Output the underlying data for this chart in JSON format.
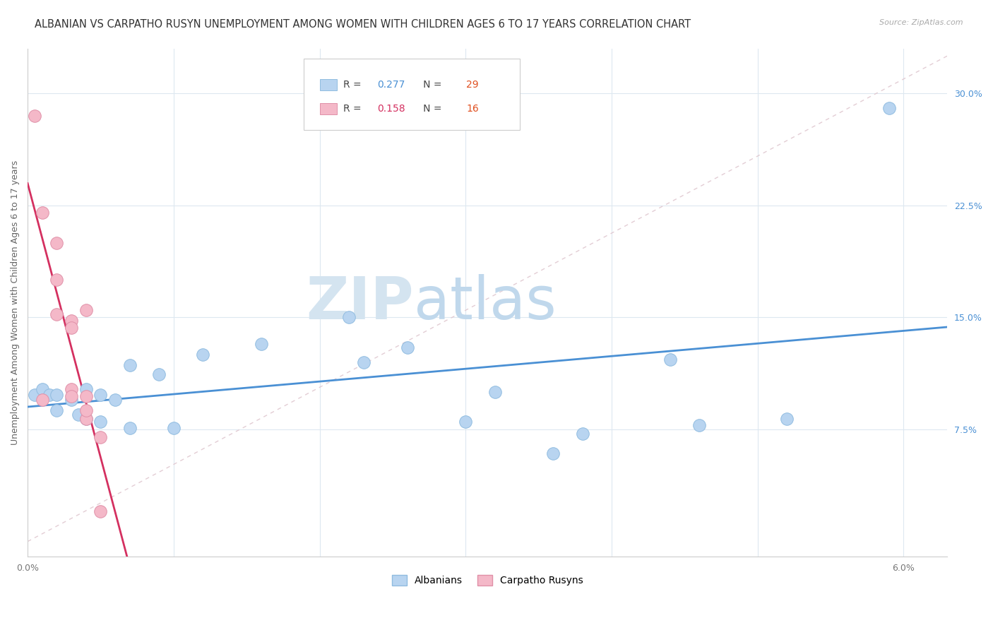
{
  "title": "ALBANIAN VS CARPATHO RUSYN UNEMPLOYMENT AMONG WOMEN WITH CHILDREN AGES 6 TO 17 YEARS CORRELATION CHART",
  "source": "Source: ZipAtlas.com",
  "ylabel": "Unemployment Among Women with Children Ages 6 to 17 years",
  "xlim": [
    0.0,
    0.063
  ],
  "ylim": [
    -0.01,
    0.33
  ],
  "xtick_vals": [
    0.0,
    0.01,
    0.02,
    0.03,
    0.04,
    0.05,
    0.06
  ],
  "xtick_labels": [
    "0.0%",
    "",
    "",
    "",
    "",
    "",
    "6.0%"
  ],
  "yticks_right": [
    0.075,
    0.15,
    0.225,
    0.3
  ],
  "yticklabels_right": [
    "7.5%",
    "15.0%",
    "22.5%",
    "30.0%"
  ],
  "albanian_x": [
    0.0005,
    0.001,
    0.0015,
    0.002,
    0.002,
    0.003,
    0.0035,
    0.004,
    0.004,
    0.005,
    0.005,
    0.006,
    0.007,
    0.007,
    0.009,
    0.01,
    0.012,
    0.016,
    0.022,
    0.023,
    0.026,
    0.03,
    0.032,
    0.036,
    0.038,
    0.044,
    0.046,
    0.052,
    0.059
  ],
  "albanian_y": [
    0.098,
    0.102,
    0.098,
    0.098,
    0.088,
    0.095,
    0.085,
    0.082,
    0.102,
    0.08,
    0.098,
    0.095,
    0.076,
    0.118,
    0.112,
    0.076,
    0.125,
    0.132,
    0.15,
    0.12,
    0.13,
    0.08,
    0.1,
    0.059,
    0.072,
    0.122,
    0.078,
    0.082,
    0.29
  ],
  "rusyn_x": [
    0.0005,
    0.001,
    0.001,
    0.002,
    0.002,
    0.002,
    0.003,
    0.003,
    0.003,
    0.003,
    0.004,
    0.004,
    0.004,
    0.004,
    0.005,
    0.005
  ],
  "rusyn_y": [
    0.285,
    0.22,
    0.095,
    0.2,
    0.175,
    0.152,
    0.148,
    0.143,
    0.102,
    0.097,
    0.082,
    0.088,
    0.097,
    0.155,
    0.07,
    0.02
  ],
  "albanian_R": 0.277,
  "albanian_N": 29,
  "rusyn_R": 0.158,
  "rusyn_N": 16,
  "albanian_scatter_color": "#b8d4f0",
  "rusyn_scatter_color": "#f4b8c8",
  "albanian_edge_color": "#90bce0",
  "rusyn_edge_color": "#e090a8",
  "albanian_line_color": "#4a90d4",
  "rusyn_line_color": "#d43060",
  "diagonal_color": "#e0c8d0",
  "watermark_zip_color": "#d8e8f4",
  "watermark_atlas_color": "#c0d4e8",
  "background_color": "#ffffff",
  "grid_color": "#dde8f0",
  "title_fontsize": 10.5,
  "axis_label_fontsize": 9,
  "tick_fontsize": 9,
  "legend_fontsize": 10,
  "source_fontsize": 8,
  "albanian_legend_color": "#4a90d4",
  "rusyn_legend_color": "#d43060",
  "legend_N_color": "#e05020"
}
